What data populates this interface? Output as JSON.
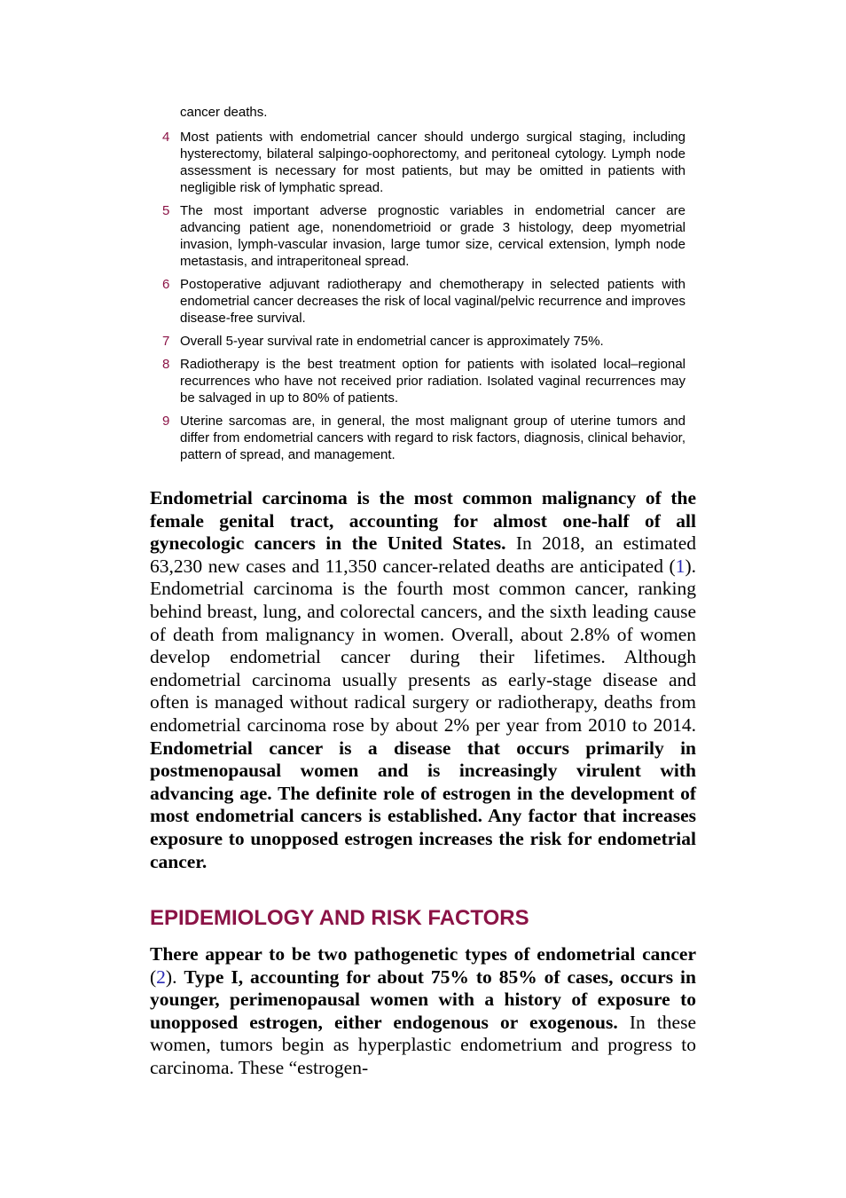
{
  "key_points": {
    "continuation": "cancer deaths.",
    "items": [
      {
        "num": "4",
        "text": "Most patients with endometrial cancer should undergo surgical staging, including hysterectomy, bilateral salpingo-oophorectomy, and peritoneal cytology. Lymph node assessment is necessary for most patients, but may be omitted in patients with negligible risk of lymphatic spread."
      },
      {
        "num": "5",
        "text": "The most important adverse prognostic variables in endometrial cancer are advancing patient age, nonendometrioid or grade 3 histology, deep myometrial invasion, lymph-vascular invasion, large tumor size, cervical extension, lymph node metastasis, and intraperitoneal spread."
      },
      {
        "num": "6",
        "text": "Postoperative adjuvant radiotherapy and chemotherapy in selected patients with endometrial cancer decreases the risk of local vaginal/pelvic recurrence and improves disease-free survival."
      },
      {
        "num": "7",
        "text": "Overall 5-year survival rate in endometrial cancer is approximately 75%."
      },
      {
        "num": "8",
        "text": "Radiotherapy is the best treatment option for patients with isolated local–regional recurrences who have not received prior radiation. Isolated vaginal recurrences may be salvaged in up to 80% of patients."
      },
      {
        "num": "9",
        "text": "Uterine sarcomas are, in general, the most malignant group of uterine tumors and differ from endometrial cancers with regard to risk factors, diagnosis, clinical behavior, pattern of spread, and management."
      }
    ]
  },
  "paragraph1": {
    "bold_lead": "Endometrial carcinoma is the most common malignancy of the female genital tract, accounting for almost one-half of all gynecologic cancers in the United States.",
    "text_a": " In 2018, an estimated 63,230 new cases and 11,350 cancer-related deaths are anticipated (",
    "ref": "1",
    "text_b": "). Endometrial carcinoma is the fourth most common cancer, ranking behind breast, lung, and colorectal cancers, and the sixth leading cause of death from malignancy in women. Overall, about 2.8% of women develop endometrial cancer during their lifetimes. Although endometrial carcinoma usually presents as early-stage disease and often is managed without radical surgery or radiotherapy, deaths from endometrial carcinoma rose by about 2% per year from 2010 to 2014. ",
    "bold_tail": "Endometrial cancer is a disease that occurs primarily in postmenopausal women and is increasingly virulent with advancing age. The definite role of estrogen in the development of most endometrial cancers is established. Any factor that increases exposure to unopposed estrogen increases the risk for endometrial cancer."
  },
  "section": {
    "heading": "EPIDEMIOLOGY AND RISK FACTORS"
  },
  "paragraph2": {
    "bold_a": "There appear to be two pathogenetic types of endometrial cancer",
    "text_a": " (",
    "ref": "2",
    "text_b": "). ",
    "bold_b": "Type I, accounting for about 75% to 85% of cases, occurs in younger, perimenopausal women with a history of exposure to unopposed estrogen, either endogenous or exogenous.",
    "text_c": " In these women, tumors begin as hyperplastic endometrium and progress to carcinoma. These “estrogen-"
  },
  "colors": {
    "accent": "#8b1346",
    "link": "#2a2ab5",
    "text": "#000000"
  }
}
